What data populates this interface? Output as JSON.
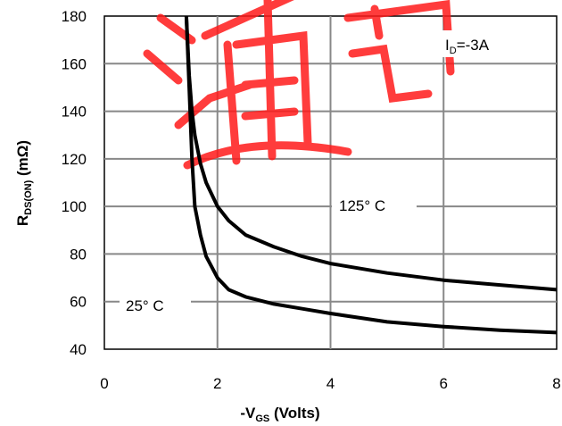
{
  "chart_data": {
    "type": "line",
    "xlabel": "-V_GS (Volts)",
    "ylabel": "R_DS(ON) (mΩ)",
    "xlim": [
      0,
      8
    ],
    "ylim": [
      40,
      180
    ],
    "xticks": [
      "0",
      "2",
      "4",
      "6",
      "8"
    ],
    "yticks": [
      "40",
      "60",
      "80",
      "100",
      "120",
      "140",
      "160",
      "180"
    ],
    "grid": true,
    "annotation": "I_D=-3A",
    "series": [
      {
        "name": "125° C",
        "x": [
          1.45,
          1.5,
          1.55,
          1.6,
          1.7,
          1.8,
          2.0,
          2.2,
          2.5,
          3.0,
          3.5,
          4.0,
          5.0,
          6.0,
          7.0,
          8.0
        ],
        "y": [
          180,
          155,
          140,
          130,
          118,
          110,
          100,
          94,
          88,
          83,
          79,
          76,
          72,
          69,
          67,
          65
        ]
      },
      {
        "name": "25° C",
        "x": [
          1.45,
          1.5,
          1.55,
          1.6,
          1.7,
          1.8,
          2.0,
          2.2,
          2.5,
          3.0,
          3.5,
          4.0,
          5.0,
          6.0,
          7.0,
          8.0
        ],
        "y": [
          180,
          150,
          120,
          100,
          88,
          79,
          70,
          65,
          62,
          59,
          57,
          55,
          51.5,
          49.5,
          48,
          47
        ]
      }
    ]
  },
  "labels": {
    "ylabel_main": "R",
    "ylabel_sub": "DS(ON)",
    "ylabel_unit": " (mΩ)",
    "xlabel_main": "-V",
    "xlabel_sub": "GS",
    "xlabel_unit": " (Volts)",
    "annotation_main": "I",
    "annotation_sub": "D",
    "annotation_rest": "=-3A",
    "series_125": "125° C",
    "series_25": "25° C"
  },
  "watermark_text": "通"
}
